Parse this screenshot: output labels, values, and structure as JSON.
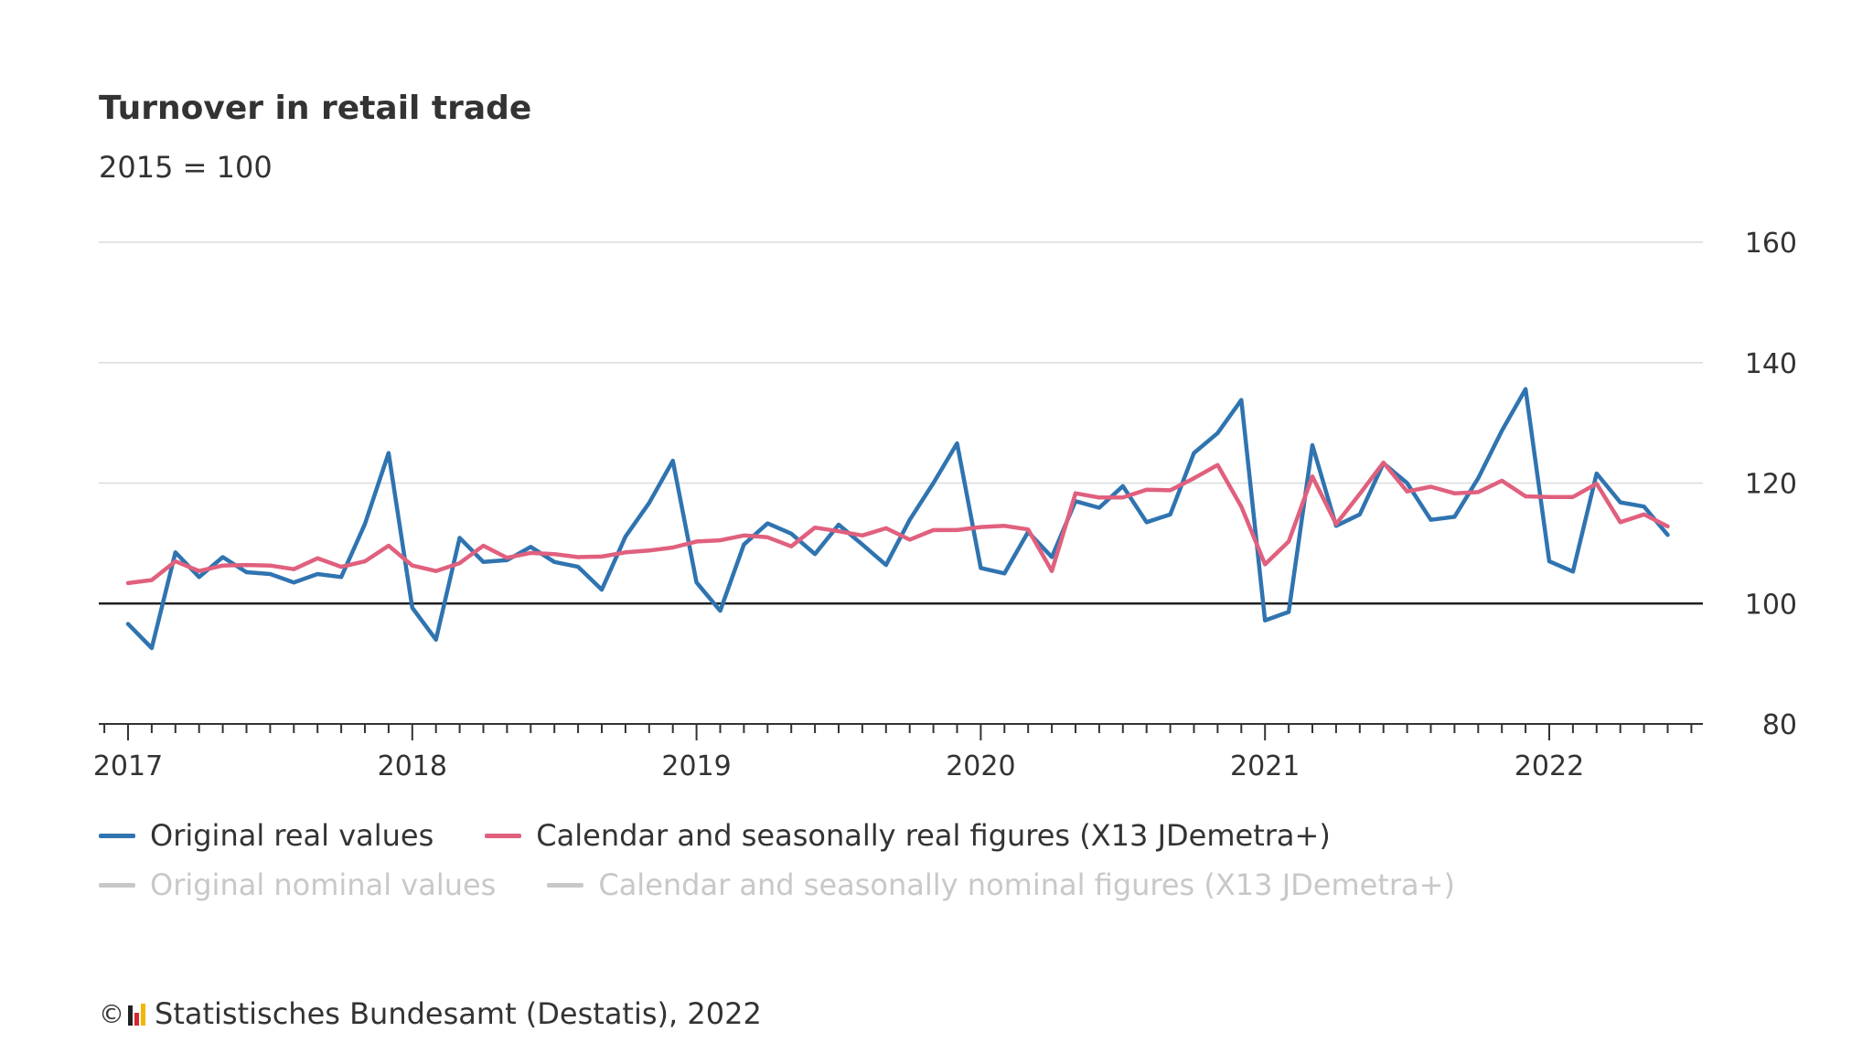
{
  "title": "Turnover in retail trade",
  "subtitle": "2015 = 100",
  "legend": {
    "row1": [
      {
        "label": "Original real values",
        "color": "#2f74b0",
        "active": true
      },
      {
        "label": "Calendar and seasonally real figures (X13 JDemetra+)",
        "color": "#e0607e",
        "active": true
      }
    ],
    "row2": [
      {
        "label": "Original nominal values",
        "color": "#c8c8c8",
        "active": false
      },
      {
        "label": "Calendar and seasonally nominal figures (X13 JDemetra+)",
        "color": "#c8c8c8",
        "active": false
      }
    ]
  },
  "footer": {
    "copyright_symbol": "©",
    "source": "Statistisches Bundesamt (Destatis), 2022"
  },
  "chart_data": {
    "type": "line",
    "title": "Turnover in retail trade",
    "subtitle": "2015 = 100",
    "xlabel": "",
    "ylabel": "",
    "ylim": [
      80,
      160
    ],
    "yticks": [
      "80",
      "100",
      "120",
      "140",
      "160"
    ],
    "baseline": 100,
    "x_start": "2017-01",
    "x_end": "2022-06",
    "year_labels": [
      "2017",
      "2018",
      "2019",
      "2020",
      "2021",
      "2022"
    ],
    "series": [
      {
        "name": "Original real values",
        "color": "#2f74b0",
        "values": [
          96.6,
          92.6,
          108.5,
          104.4,
          107.7,
          105.2,
          104.9,
          103.5,
          104.9,
          104.4,
          113.2,
          125.0,
          99.3,
          94.0,
          110.9,
          106.9,
          107.2,
          109.4,
          106.9,
          106.1,
          102.3,
          111.1,
          116.7,
          123.7,
          103.5,
          98.8,
          109.8,
          113.3,
          111.6,
          108.2,
          113.1,
          109.8,
          106.4,
          113.9,
          120.0,
          126.6,
          105.9,
          105.0,
          111.9,
          107.7,
          117.0,
          115.9,
          119.5,
          113.5,
          114.8,
          125.0,
          128.3,
          133.8,
          97.2,
          98.6,
          126.3,
          112.9,
          114.8,
          123.3,
          120.0,
          113.9,
          114.4,
          120.8,
          128.7,
          135.6,
          107.0,
          105.3,
          121.6,
          116.8,
          116.1,
          111.4
        ]
      },
      {
        "name": "Calendar and seasonally real figures (X13 JDemetra+)",
        "color": "#e0607e",
        "values": [
          103.4,
          103.9,
          107.0,
          105.4,
          106.3,
          106.4,
          106.3,
          105.7,
          107.5,
          106.1,
          107.0,
          109.6,
          106.3,
          105.4,
          106.7,
          109.6,
          107.6,
          108.4,
          108.2,
          107.7,
          107.8,
          108.5,
          108.8,
          109.3,
          110.3,
          110.5,
          111.3,
          111.0,
          109.5,
          112.6,
          112.0,
          111.3,
          112.5,
          110.6,
          112.2,
          112.2,
          112.7,
          112.9,
          112.3,
          105.4,
          118.3,
          117.6,
          117.6,
          118.9,
          118.8,
          120.8,
          123.0,
          116.1,
          106.5,
          110.3,
          121.1,
          113.2,
          118.2,
          123.4,
          118.6,
          119.4,
          118.3,
          118.5,
          120.4,
          117.8,
          117.7,
          117.7,
          119.9,
          113.5,
          114.8,
          112.8
        ]
      }
    ]
  }
}
